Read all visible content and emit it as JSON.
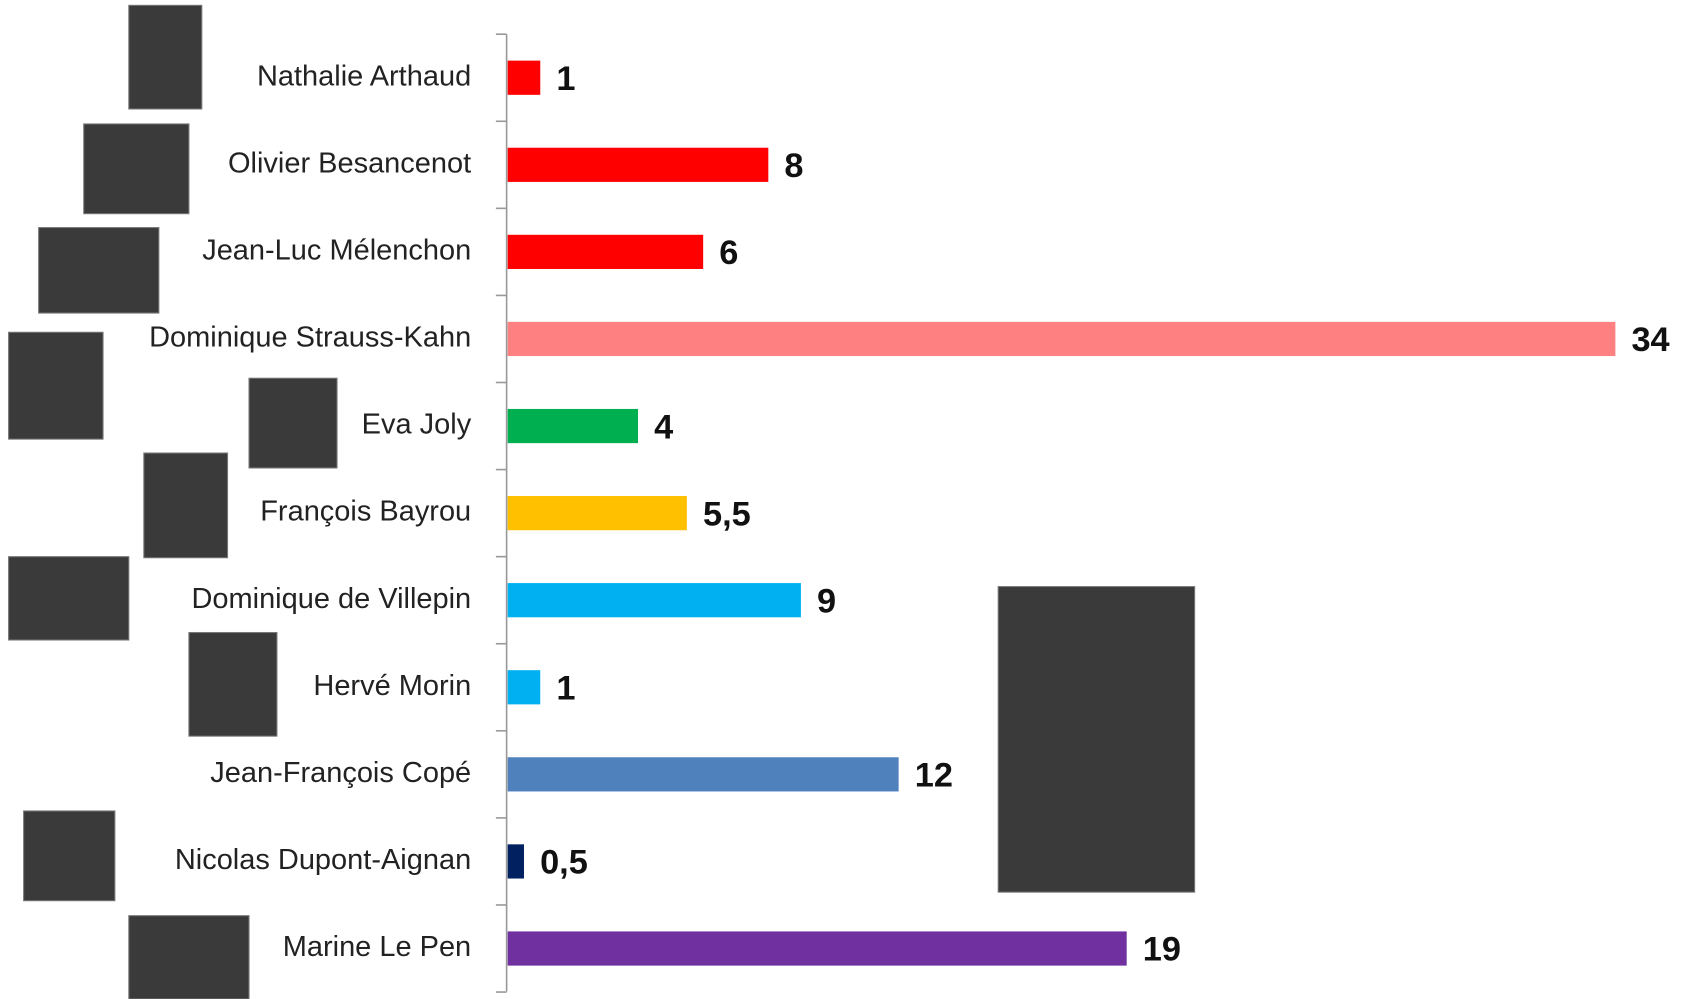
{
  "chart_data": {
    "type": "barh",
    "categories": [
      "Nathalie Arthaud",
      "Olivier Besancenot",
      "Jean-Luc Mélenchon",
      "Dominique Strauss-Kahn",
      "Eva Joly",
      "François Bayrou",
      "Dominique de Villepin",
      "Hervé Morin",
      "Jean-François Copé",
      "Nicolas Dupont-Aignan",
      "Marine Le Pen"
    ],
    "values": [
      1,
      8,
      6,
      34,
      4,
      5.5,
      9,
      1,
      12,
      0.5,
      19
    ],
    "value_labels": [
      "1",
      "8",
      "6",
      "34",
      "4",
      "5,5",
      "9",
      "1",
      "12",
      "0,5",
      "19"
    ],
    "colors": [
      "#ff0000",
      "#ff0000",
      "#ff0000",
      "#ff8080",
      "#00b050",
      "#ffc000",
      "#00b0f0",
      "#00b0f0",
      "#4f81bd",
      "#002060",
      "#7030a0"
    ],
    "xlim": [
      0,
      34
    ]
  }
}
